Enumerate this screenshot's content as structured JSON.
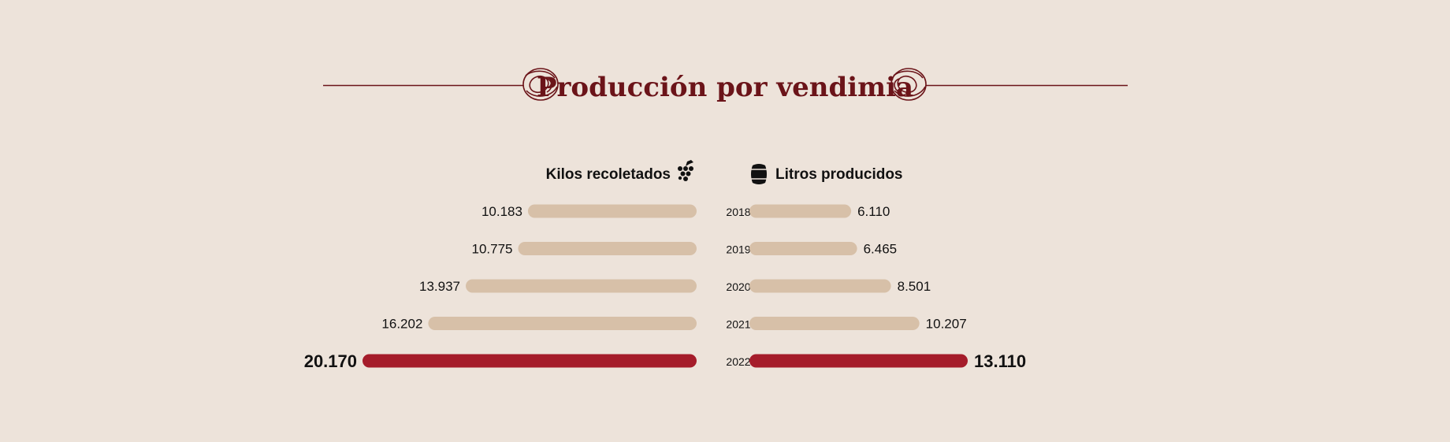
{
  "title": "Producción por vendimia",
  "colors": {
    "background": "#ede3da",
    "title": "#6b1419",
    "bar": "#d7c0a8",
    "highlight": "#a51c2a",
    "text": "#111111"
  },
  "chart_data": {
    "type": "bar",
    "orientation": "horizontal-butterfly",
    "categories": [
      "2018",
      "2019",
      "2020",
      "2021",
      "2022"
    ],
    "highlight_category": "2022",
    "series": [
      {
        "name": "Kilos recoletados",
        "icon": "grapes-icon",
        "values": [
          10183,
          10775,
          13937,
          16202,
          20170
        ],
        "labels": [
          "10.183",
          "10.775",
          "13.937",
          "16.202",
          "20.170"
        ]
      },
      {
        "name": "Litros producidos",
        "icon": "barrel-icon",
        "values": [
          6110,
          6465,
          8501,
          10207,
          13110
        ],
        "labels": [
          "6.110",
          "6.465",
          "8.501",
          "10.207",
          "13.110"
        ]
      }
    ]
  }
}
